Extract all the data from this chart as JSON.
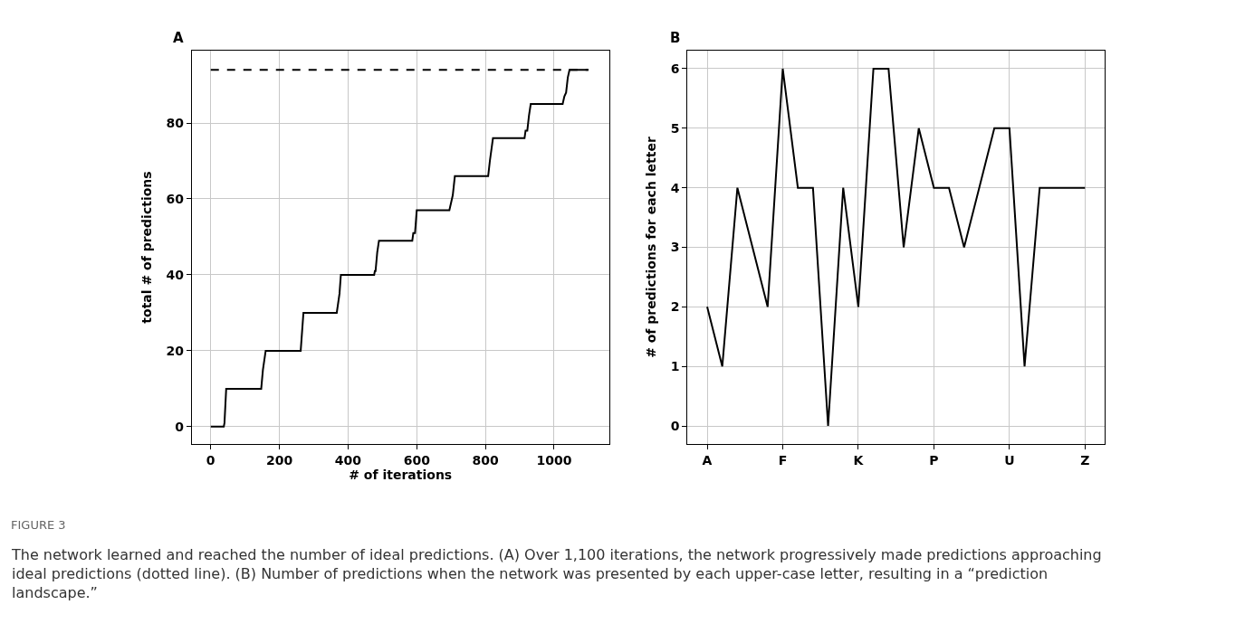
{
  "chart_data": [
    {
      "type": "line",
      "title": "A",
      "xlabel": "# of iterations",
      "ylabel": "total # of predictions",
      "series": [
        {
          "color": "#000000",
          "line_style": "solid",
          "x": [
            0,
            38,
            40,
            45,
            147,
            152,
            160,
            262,
            270,
            367,
            375,
            379,
            476,
            478,
            480,
            485,
            490,
            587,
            590,
            595,
            600,
            695,
            700,
            705,
            711,
            808,
            813,
            822,
            914,
            917,
            922,
            927,
            932,
            1025,
            1030,
            1035,
            1040,
            1045,
            1100
          ],
          "values": [
            0,
            0,
            1,
            10,
            10,
            15,
            20,
            20,
            30,
            30,
            35,
            40,
            40,
            41,
            41,
            46,
            49,
            49,
            51,
            51,
            57,
            57,
            59,
            61,
            66,
            66,
            70,
            76,
            76,
            78,
            78,
            82,
            85,
            85,
            87,
            88,
            92,
            94,
            94
          ]
        },
        {
          "color": "#000000",
          "line_style": "dashed",
          "x": [
            0,
            1100
          ],
          "values": [
            94,
            94
          ]
        }
      ],
      "xlim": [
        -55,
        1160
      ],
      "ylim": [
        -4.5,
        99
      ],
      "xticks": [
        0,
        200,
        400,
        600,
        800,
        1000
      ],
      "yticks": [
        0,
        20,
        40,
        60,
        80
      ],
      "grid": true,
      "annotations": [
        "FIGURE 3",
        "The network learned and reached the number of ideal predictions. (A) Over 1,100 iterations, the network progressively made predictions approaching ideal predictions (dotted line). (B) Number of predictions when the network was presented by each upper-case letter, resulting in a “prediction landscape.”"
      ]
    },
    {
      "type": "line",
      "title": "B",
      "ylabel": "# of predictions for each letter",
      "categories": [
        "A",
        null,
        null,
        null,
        null,
        "F",
        null,
        null,
        null,
        null,
        "K",
        null,
        null,
        null,
        null,
        "P",
        null,
        null,
        null,
        null,
        "U",
        null,
        null,
        null,
        null,
        "Z"
      ],
      "series": [
        {
          "color": "#000000",
          "values": [
            2,
            1,
            4,
            3,
            2,
            6,
            4,
            4,
            0,
            4,
            2,
            6,
            6,
            3,
            5,
            4,
            4,
            3,
            4,
            5,
            5,
            1,
            4,
            4,
            4,
            4
          ]
        }
      ],
      "ylim": [
        -0.3,
        6.3
      ],
      "yticks": [
        0,
        1,
        2,
        3,
        4,
        5,
        6
      ],
      "grid": true
    }
  ]
}
